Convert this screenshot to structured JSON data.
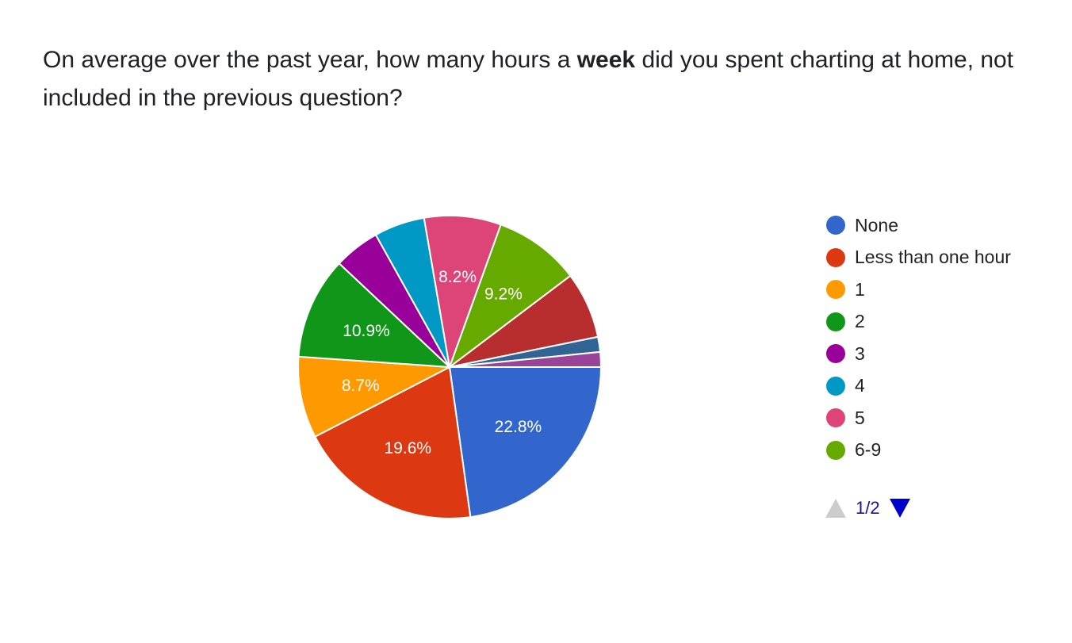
{
  "question": {
    "before": "On average over the past year, how many hours a ",
    "bold": "week",
    "after": " did you spent charting at home, not included in the previous question?"
  },
  "chart_data": {
    "type": "pie",
    "title": "",
    "slices": [
      {
        "name": "None",
        "value": 22.8,
        "label": "22.8%",
        "color": "#3366cc"
      },
      {
        "name": "Less than one hour",
        "value": 19.6,
        "label": "19.6%",
        "color": "#dc3912"
      },
      {
        "name": "1",
        "value": 8.7,
        "label": "8.7%",
        "color": "#ff9900"
      },
      {
        "name": "2",
        "value": 10.9,
        "label": "10.9%",
        "color": "#109618"
      },
      {
        "name": "3",
        "value": 4.9,
        "label": "",
        "color": "#990099"
      },
      {
        "name": "4",
        "value": 5.4,
        "label": "",
        "color": "#0099c6"
      },
      {
        "name": "5",
        "value": 8.2,
        "label": "8.2%",
        "color": "#dd4477"
      },
      {
        "name": "6-9",
        "value": 9.2,
        "label": "9.2%",
        "color": "#66aa00"
      },
      {
        "name": "",
        "value": 7.1,
        "label": "",
        "color": "#b82e2e"
      },
      {
        "name": "",
        "value": 1.6,
        "label": "",
        "color": "#316395"
      },
      {
        "name": "",
        "value": 1.6,
        "label": "",
        "color": "#994499"
      }
    ],
    "legend_position": "right"
  },
  "legend": {
    "items": [
      {
        "label": "None",
        "color": "#3366cc"
      },
      {
        "label": "Less than one hour",
        "color": "#dc3912"
      },
      {
        "label": "1",
        "color": "#ff9900"
      },
      {
        "label": "2",
        "color": "#109618"
      },
      {
        "label": "3",
        "color": "#990099"
      },
      {
        "label": "4",
        "color": "#0099c6"
      },
      {
        "label": "5",
        "color": "#dd4477"
      },
      {
        "label": "6-9",
        "color": "#66aa00"
      }
    ],
    "page_indicator": "1/2"
  }
}
